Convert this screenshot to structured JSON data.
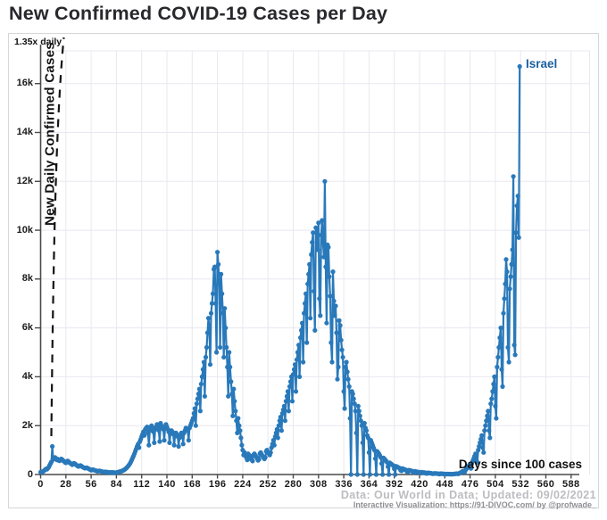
{
  "title": "New Confirmed COVID-19 Cases per Day",
  "annotations": {
    "growth_label": "1.35x daily",
    "country_label": "Israel",
    "x_axis_label": "Days since 100 cases",
    "y_axis_label": "New Daily Confirmed Cases"
  },
  "attribution": {
    "line1": "Data: Our World in Data; Updated: 09/02/2021",
    "line2": "Interactive Visualization: https://91-DIVOC.com/ by @profwade_"
  },
  "colors": {
    "series": "#2979ba",
    "country_label": "#1c5fa0",
    "grid": "#e8e8f0",
    "axis": "#4a4a4a",
    "growth_line": "#151515",
    "title": "#28282d",
    "attribution_primary": "#bdbdc1",
    "attribution_secondary": "#8f8f93"
  },
  "chart_data": {
    "type": "line",
    "series_name": "Israel",
    "title": "New Confirmed COVID-19 Cases per Day",
    "xlabel": "Days since 100 cases",
    "ylabel": "New Daily Confirmed Cases",
    "x_ticks": [
      0,
      28,
      56,
      84,
      112,
      140,
      168,
      196,
      224,
      252,
      280,
      308,
      336,
      364,
      392,
      420,
      448,
      476,
      504,
      532,
      560,
      588
    ],
    "y_ticks": [
      "0",
      "2k",
      "4k",
      "6k",
      "8k",
      "10k",
      "12k",
      "14k",
      "16k"
    ],
    "y_tick_values": [
      0,
      2000,
      4000,
      6000,
      8000,
      10000,
      12000,
      14000,
      16000
    ],
    "xlim": [
      0,
      608
    ],
    "ylim": [
      0,
      17350
    ],
    "grid": true,
    "markers": true,
    "growth_reference": {
      "label": "1.35x daily",
      "rate": 1.35,
      "start_value": 100
    },
    "x_start_day": 0,
    "daily_values": [
      100,
      90,
      110,
      130,
      160,
      200,
      230,
      210,
      260,
      300,
      380,
      450,
      520,
      1150,
      620,
      680,
      700,
      650,
      600,
      630,
      580,
      560,
      600,
      640,
      610,
      570,
      540,
      500,
      480,
      520,
      560,
      530,
      490,
      460,
      430,
      400,
      430,
      460,
      440,
      410,
      380,
      350,
      330,
      350,
      370,
      350,
      320,
      300,
      280,
      260,
      270,
      280,
      260,
      240,
      220,
      200,
      180,
      190,
      200,
      190,
      170,
      160,
      150,
      130,
      140,
      150,
      140,
      130,
      120,
      110,
      100,
      105,
      110,
      100,
      95,
      90,
      85,
      80,
      85,
      90,
      85,
      80,
      75,
      70,
      80,
      90,
      100,
      110,
      120,
      130,
      140,
      160,
      180,
      200,
      230,
      260,
      300,
      340,
      390,
      450,
      520,
      600,
      680,
      760,
      850,
      950,
      1050,
      1150,
      1250,
      1100,
      1350,
      1450,
      1550,
      1650,
      1750,
      1600,
      1850,
      1900,
      1950,
      1700,
      1200,
      1800,
      1950,
      2000,
      1900,
      1750,
      1300,
      1850,
      1950,
      2050,
      1950,
      1800,
      1350,
      2100,
      2000,
      1900,
      1850,
      1400,
      1950,
      2050,
      1950,
      1850,
      1750,
      1300,
      1700,
      1800,
      1750,
      1650,
      1200,
      1600,
      1700,
      1650,
      1550,
      1150,
      1500,
      1600,
      1700,
      1650,
      1250,
      1700,
      1800,
      1900,
      1850,
      1800,
      1400,
      1900,
      2000,
      2100,
      2200,
      2300,
      2500,
      2700,
      2000,
      2900,
      3100,
      3300,
      3500,
      2600,
      3700,
      4000,
      4300,
      4600,
      3200,
      4800,
      5200,
      5800,
      6400,
      6000,
      4500,
      6600,
      7000,
      7400,
      8400,
      8500,
      7000,
      5000,
      9100,
      8600,
      7800,
      5200,
      8200,
      7400,
      6600,
      4800,
      6800,
      6000,
      5200,
      4400,
      3200,
      5000,
      4400,
      3800,
      3300,
      2400,
      3500,
      3000,
      2600,
      2200,
      1700,
      2300,
      2000,
      1800,
      1500,
      1200,
      1000,
      800,
      900,
      850,
      700,
      600,
      850,
      800,
      750,
      700,
      600,
      550,
      800,
      850,
      780,
      720,
      650,
      580,
      620,
      850,
      900,
      820,
      760,
      700,
      640,
      700,
      950,
      1000,
      900,
      850,
      800,
      900,
      1100,
      1250,
      1400,
      1200,
      1550,
      1700,
      1850,
      1500,
      2000,
      2200,
      2350,
      1800,
      2500,
      2650,
      2800,
      2200,
      3000,
      3200,
      3400,
      2600,
      3600,
      3800,
      4000,
      3000,
      4100,
      4300,
      4500,
      3400,
      4700,
      5000,
      5300,
      4000,
      5600,
      5900,
      6200,
      4600,
      6600,
      7000,
      7400,
      5400,
      7800,
      8200,
      8600,
      6400,
      9000,
      9500,
      9900,
      7500,
      5900,
      10100,
      9900,
      9200,
      10300,
      7200,
      6500,
      9800,
      10400,
      9500,
      8900,
      12000,
      8500,
      6200,
      9400,
      9300,
      8100,
      7300,
      5400,
      4600,
      8300,
      7100,
      6500,
      6900,
      5800,
      3900,
      4400,
      6300,
      6100,
      5500,
      5100,
      4800,
      3400,
      2700,
      4400,
      4600,
      4200,
      3900,
      3600,
      2300,
      0,
      3400,
      3300,
      3100,
      2900,
      2600,
      1700,
      0,
      2800,
      2600,
      2400,
      2200,
      2000,
      1300,
      0,
      2100,
      1900,
      1800,
      1600,
      1500,
      900,
      0,
      1400,
      1300,
      1200,
      1100,
      1000,
      650,
      0,
      950,
      900,
      850,
      780,
      700,
      450,
      0,
      680,
      640,
      600,
      550,
      500,
      320,
      0,
      480,
      450,
      420,
      390,
      360,
      230,
      0,
      340,
      320,
      300,
      280,
      260,
      170,
      150,
      250,
      230,
      210,
      200,
      190,
      120,
      100,
      180,
      170,
      160,
      150,
      140,
      90,
      80,
      130,
      120,
      110,
      105,
      100,
      65,
      55,
      95,
      90,
      85,
      80,
      75,
      50,
      40,
      70,
      65,
      60,
      55,
      50,
      35,
      30,
      48,
      45,
      42,
      40,
      38,
      25,
      20,
      35,
      32,
      30,
      28,
      26,
      15,
      12,
      22,
      20,
      19,
      18,
      17,
      12,
      10,
      18,
      20,
      25,
      30,
      35,
      30,
      25,
      50,
      70,
      90,
      110,
      140,
      120,
      100,
      180,
      230,
      280,
      330,
      380,
      300,
      250,
      450,
      550,
      650,
      750,
      850,
      600,
      500,
      1000,
      1150,
      1300,
      1450,
      1600,
      1100,
      900,
      1800,
      2000,
      2200,
      2400,
      2600,
      1800,
      1500,
      2900,
      3100,
      3400,
      3700,
      4000,
      2800,
      2300,
      4400,
      4800,
      5200,
      5600,
      6000,
      4300,
      3600,
      6600,
      7200,
      7800,
      8800,
      8300,
      5200,
      4600,
      7600,
      8100,
      8600,
      9200,
      12200,
      5300,
      4900,
      9900,
      11000,
      11400,
      9700,
      16700
    ]
  }
}
